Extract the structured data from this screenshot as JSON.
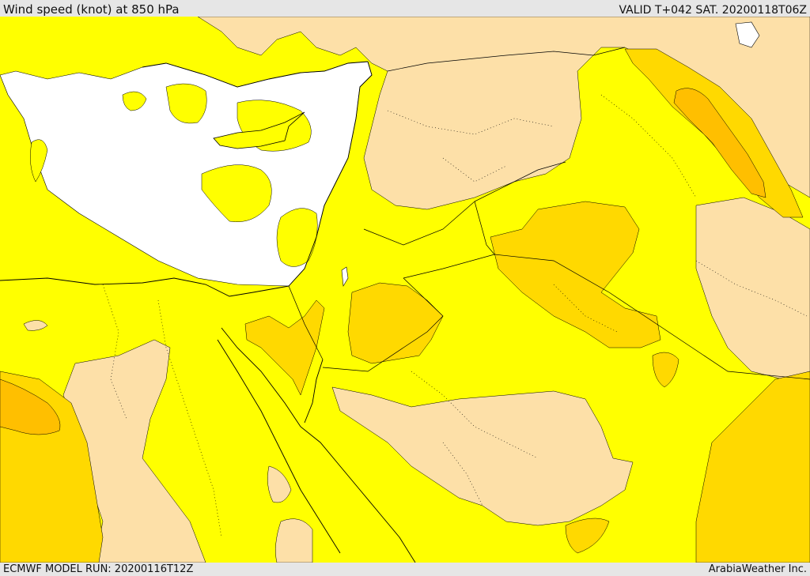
{
  "header": {
    "title": "Wind speed (knot) at 850 hPa",
    "valid": "VALID T+042 SAT. 20200118T06Z"
  },
  "footer": {
    "model_run": "ECMWF MODEL RUN: 20200116T12Z",
    "credit": "ArabiaWeather Inc."
  },
  "colors": {
    "calm": "#ffffff",
    "light": "#ffff00",
    "moderate": "#fde0a8",
    "fresh": "#ffd900",
    "strong": "#ffbf00",
    "coast": "#000000",
    "border": "#000000"
  }
}
